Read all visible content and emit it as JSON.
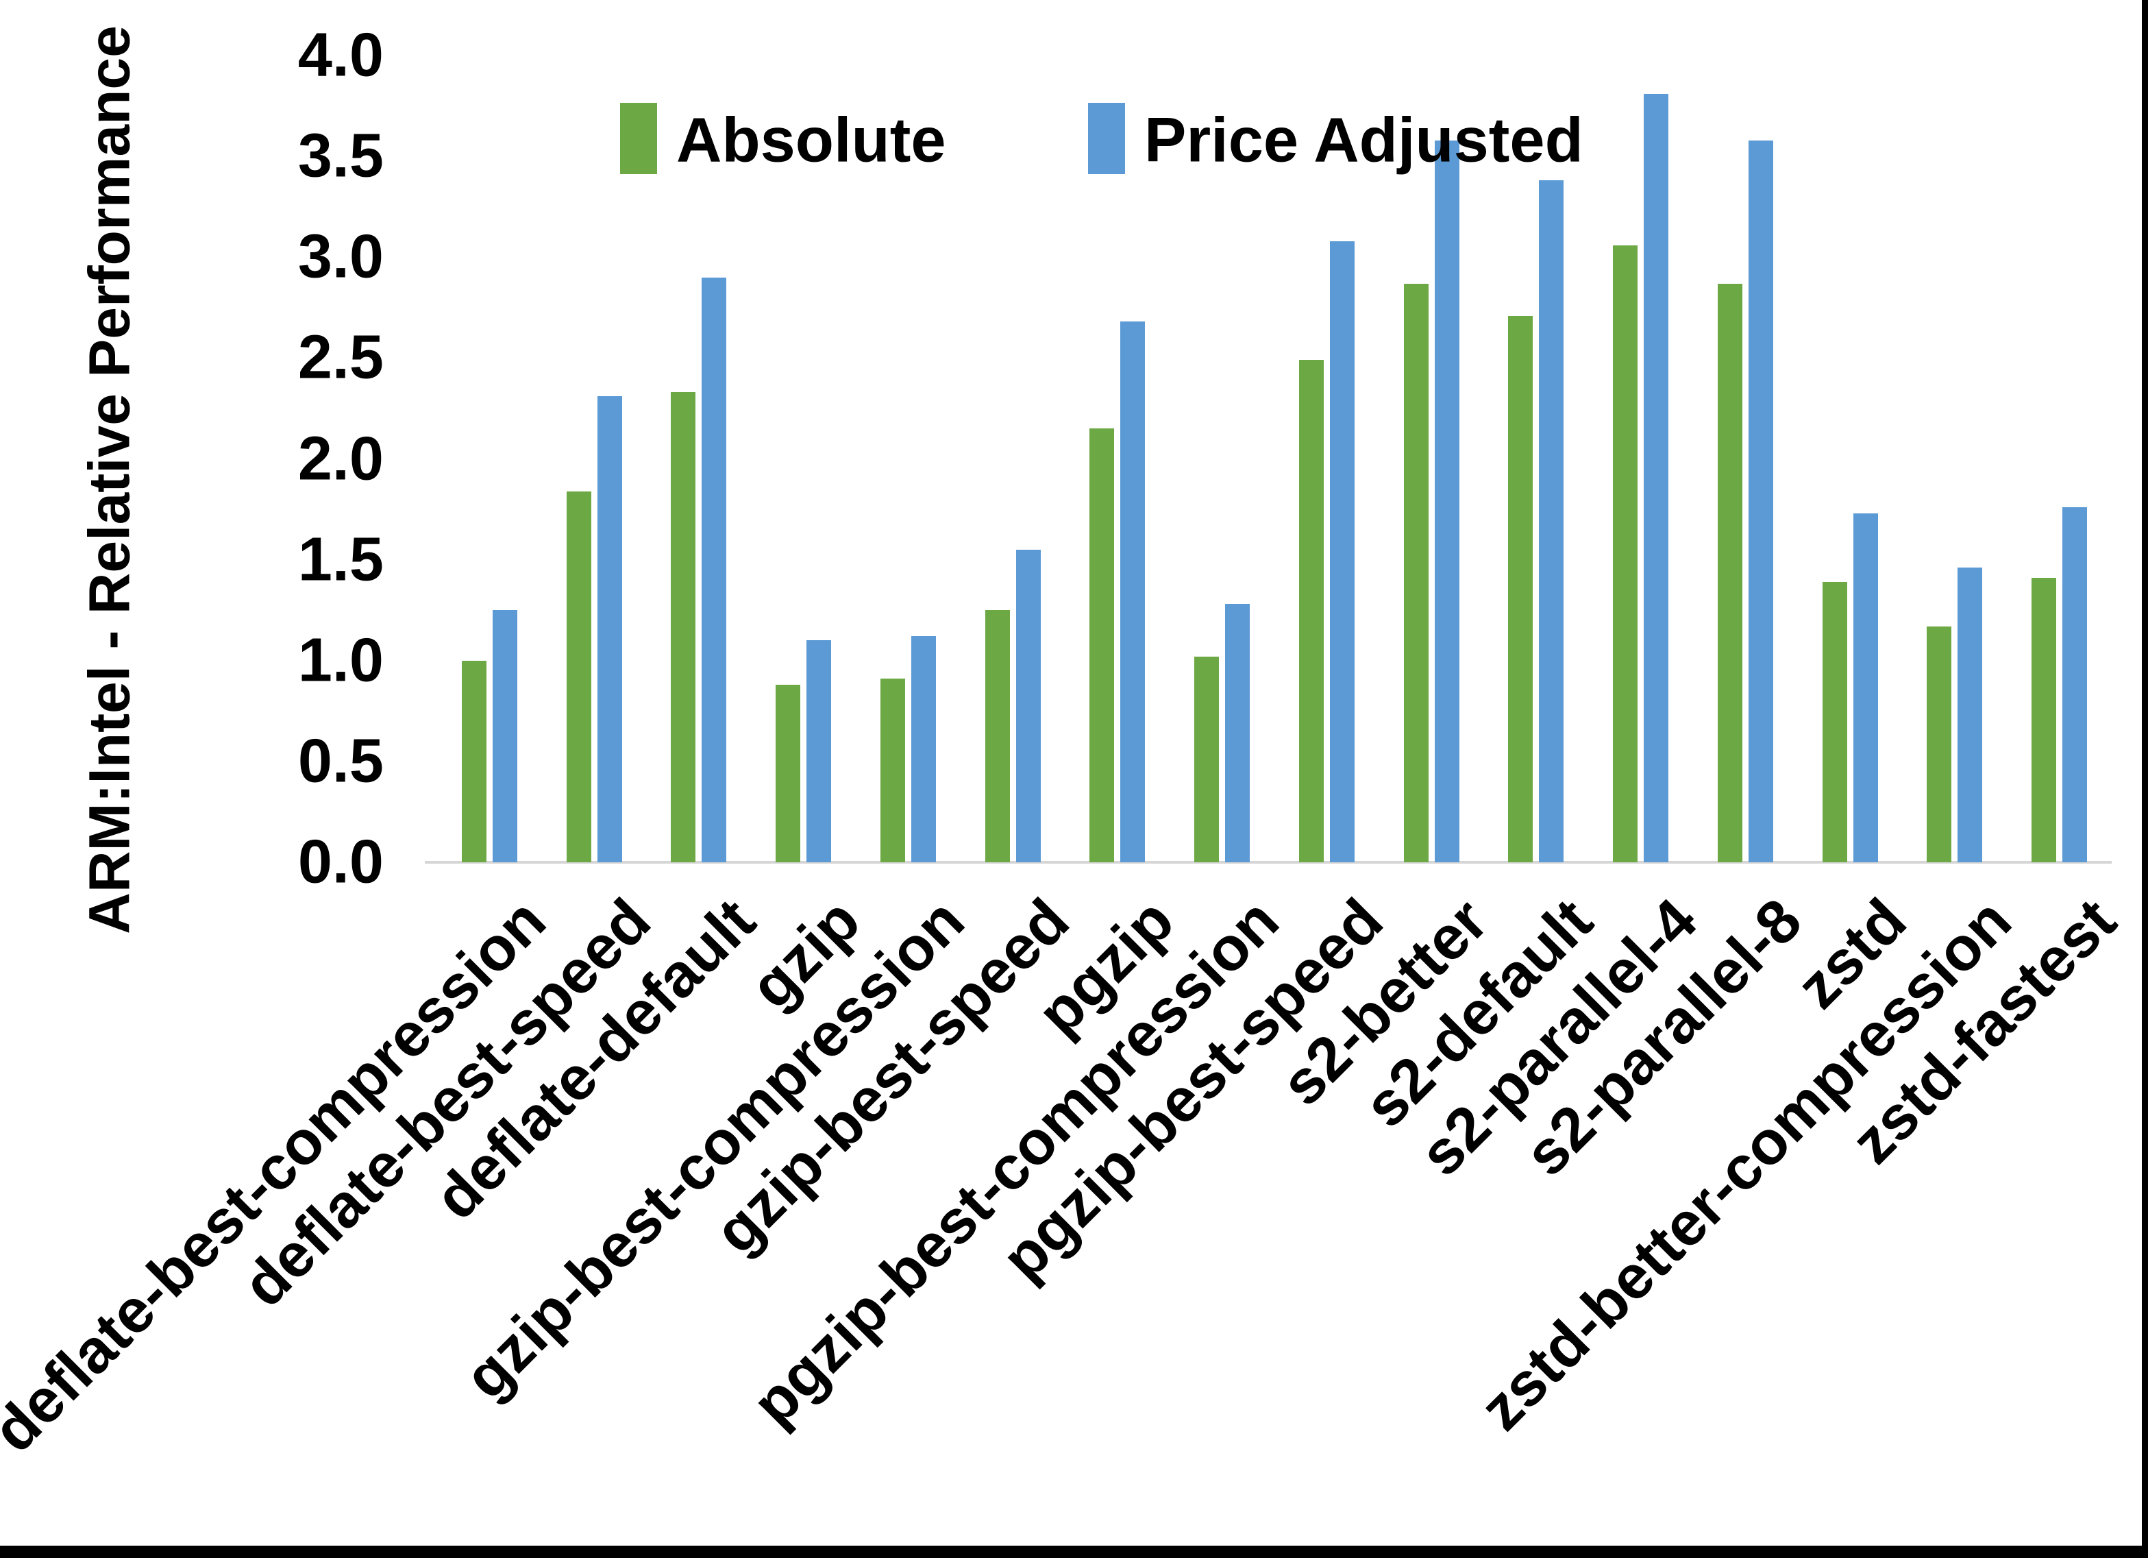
{
  "chart_data": {
    "type": "bar",
    "title": "",
    "xlabel": "",
    "ylabel": "ARM:Intel - Relative Performance",
    "ylim": [
      0.0,
      4.0
    ],
    "ytick_step": 0.5,
    "ytick_labels": [
      "0.0",
      "0.5",
      "1.0",
      "1.5",
      "2.0",
      "2.5",
      "3.0",
      "3.5",
      "4.0"
    ],
    "grid": false,
    "legend_position": "top-center",
    "categories": [
      "deflate-best-compression",
      "deflate-best-speed",
      "deflate-default",
      "gzip",
      "gzip-best-compression",
      "gzip-best-speed",
      "pgzip",
      "pgzip-best-compression",
      "pgzip-best-speed",
      "s2-better",
      "s2-default",
      "s2-parallel-4",
      "s2-parallel-8",
      "zstd",
      "zstd-better-compression",
      "zstd-fastest"
    ],
    "series": [
      {
        "name": "Absolute",
        "color": "#6CA844",
        "values": [
          1.0,
          1.84,
          2.33,
          0.88,
          0.91,
          1.25,
          2.15,
          1.02,
          2.49,
          2.87,
          2.71,
          3.06,
          2.87,
          1.39,
          1.17,
          1.41
        ]
      },
      {
        "name": "Price Adjusted",
        "color": "#5B9AD5",
        "values": [
          1.25,
          2.31,
          2.9,
          1.1,
          1.12,
          1.55,
          2.68,
          1.28,
          3.08,
          3.58,
          3.38,
          3.81,
          3.58,
          1.73,
          1.46,
          1.76
        ]
      }
    ],
    "axis_line_color": "#D6D6D6",
    "text_color": "#000000"
  }
}
